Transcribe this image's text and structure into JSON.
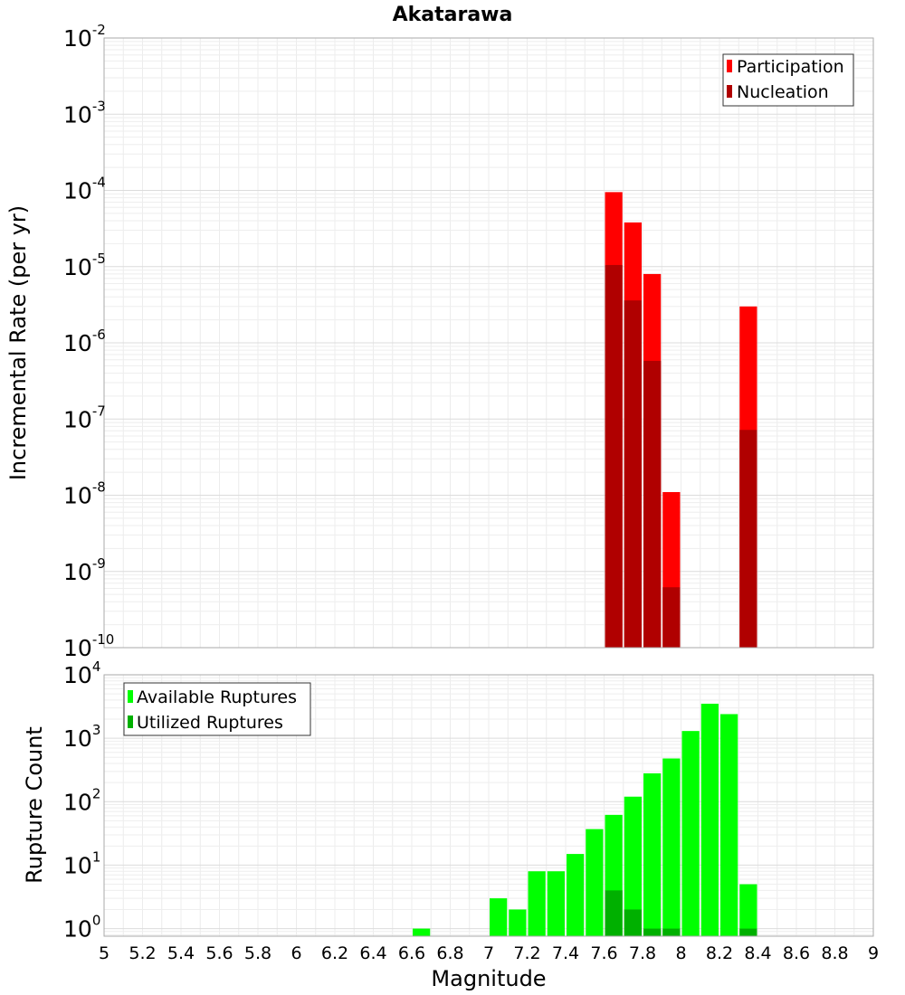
{
  "chart_data": {
    "title": "Akatarawa",
    "xlabel": "Magnitude",
    "xlim": [
      5,
      9
    ],
    "x_ticks": [
      "5",
      "5.2",
      "5.4",
      "5.6",
      "5.8",
      "6",
      "6.2",
      "6.4",
      "6.6",
      "6.8",
      "7",
      "7.2",
      "7.4",
      "7.6",
      "7.8",
      "8",
      "8.2",
      "8.4",
      "8.6",
      "8.8",
      "9"
    ],
    "bin_width": 0.1,
    "panels": [
      {
        "type": "bar",
        "scale": "log",
        "ylabel": "Incremental Rate (per yr)",
        "ylim_exponents": [
          -10,
          -2
        ],
        "y_ticks": [
          {
            "base": "10",
            "exp": "-2"
          },
          {
            "base": "10",
            "exp": "-3"
          },
          {
            "base": "10",
            "exp": "-4"
          },
          {
            "base": "10",
            "exp": "-5"
          },
          {
            "base": "10",
            "exp": "-6"
          },
          {
            "base": "10",
            "exp": "-7"
          },
          {
            "base": "10",
            "exp": "-8"
          },
          {
            "base": "10",
            "exp": "-9"
          },
          {
            "base": "10",
            "exp": "-10"
          }
        ],
        "legend_position": "top-right",
        "series": [
          {
            "name": "Participation",
            "color": "#ff0000",
            "x": [
              7.65,
              7.75,
              7.85,
              7.95,
              8.35
            ],
            "values": [
              9.5e-05,
              3.8e-05,
              8e-06,
              1.1e-08,
              3e-06
            ]
          },
          {
            "name": "Nucleation",
            "color": "#b00000",
            "x": [
              7.65,
              7.75,
              7.85,
              7.95,
              8.35
            ],
            "values": [
              1.05e-05,
              3.6e-06,
              5.8e-07,
              6.2e-10,
              7.2e-08
            ]
          }
        ]
      },
      {
        "type": "bar",
        "scale": "log",
        "ylabel": "Rupture Count",
        "ylim_exponents": [
          -0.12,
          4
        ],
        "y_ticks": [
          {
            "base": "10",
            "exp": "4"
          },
          {
            "base": "10",
            "exp": "3"
          },
          {
            "base": "10",
            "exp": "2"
          },
          {
            "base": "10",
            "exp": "1"
          },
          {
            "base": "10",
            "exp": "0"
          }
        ],
        "legend_position": "top-left",
        "series": [
          {
            "name": "Available Ruptures",
            "color": "#00ff00",
            "x": [
              6.65,
              7.05,
              7.15,
              7.25,
              7.35,
              7.45,
              7.55,
              7.65,
              7.75,
              7.85,
              7.95,
              8.05,
              8.15,
              8.25,
              8.35
            ],
            "values": [
              1,
              3,
              2,
              8,
              8,
              15,
              37,
              62,
              120,
              280,
              480,
              1300,
              3500,
              2400,
              5
            ]
          },
          {
            "name": "Utilized Ruptures",
            "color": "#00b000",
            "x": [
              7.65,
              7.75,
              7.85,
              7.95,
              8.35
            ],
            "values": [
              4,
              2,
              1,
              1,
              1
            ]
          }
        ]
      }
    ]
  }
}
